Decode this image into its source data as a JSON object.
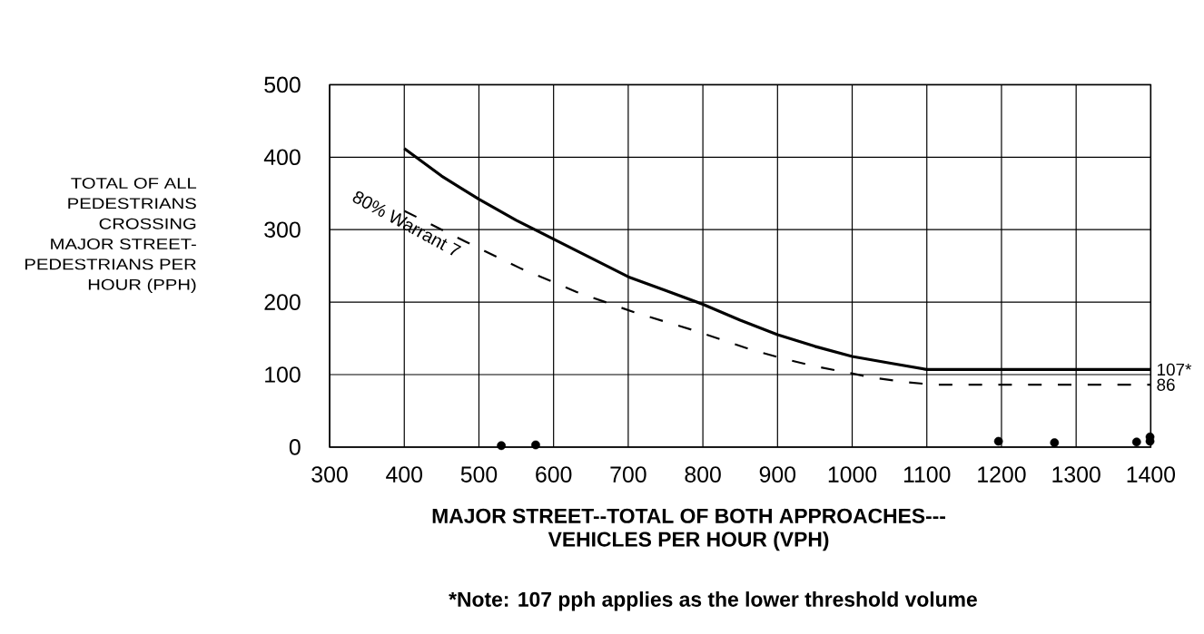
{
  "chart_data": {
    "type": "line",
    "xlabel": "MAJOR STREET--TOTAL OF BOTH APPROACHES--- VEHICLES PER HOUR (VPH)",
    "ylabel": "TOTAL OF ALL PEDESTRIANS CROSSING MAJOR STREET-PEDESTRIANS PER HOUR (PPH)",
    "xlim": [
      300,
      1400
    ],
    "ylim": [
      0,
      500
    ],
    "xticks": [
      300,
      400,
      500,
      600,
      700,
      800,
      900,
      1000,
      1100,
      1200,
      1300,
      1400
    ],
    "yticks": [
      0,
      100,
      200,
      300,
      400,
      500
    ],
    "grid": true,
    "series": [
      {
        "color": "#000000",
        "line_style": "solid",
        "x": [
          400,
          450,
          500,
          550,
          600,
          650,
          700,
          750,
          800,
          850,
          900,
          950,
          1000,
          1050,
          1100,
          1400
        ],
        "values": [
          412,
          374,
          342,
          313,
          287,
          261,
          235,
          216,
          197,
          175,
          155,
          139,
          125,
          116,
          107,
          107
        ]
      },
      {
        "name": "80% Warrant 7",
        "color": "#000000",
        "line_style": "dashed",
        "x": [
          400,
          481,
          557,
          631,
          708,
          788,
          866,
          908,
          948,
          1027,
          1069,
          1110,
          1400
        ],
        "values": [
          326,
          284,
          246,
          214,
          186,
          161,
          134,
          122,
          112,
          96,
          90,
          86,
          86
        ]
      },
      {
        "type": "scatter",
        "color": "#000000",
        "marker": "circle",
        "x": [
          530,
          576,
          1196,
          1271,
          1381,
          1399,
          1399
        ],
        "values": [
          2,
          3,
          8,
          6,
          7,
          8,
          14
        ]
      }
    ],
    "annotations": [
      {
        "text": "107*",
        "x": 1400,
        "y": 107
      },
      {
        "text": "86",
        "x": 1400,
        "y": 86
      },
      "*Note: 107 pph applies as the lower threshold volume"
    ]
  }
}
